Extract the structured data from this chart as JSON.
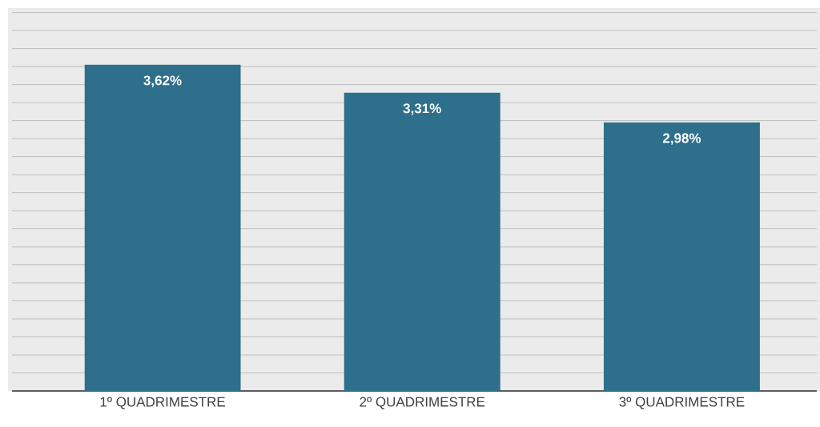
{
  "chart_data": {
    "type": "bar",
    "categories": [
      "1º QUADRIMESTRE",
      "2º QUADRIMESTRE",
      "3º QUADRIMESTRE"
    ],
    "values": [
      3.62,
      3.31,
      2.98
    ],
    "value_labels": [
      "3,62%",
      "3,31%",
      "2,98%"
    ],
    "color": "#2e6f8c",
    "ylim": [
      0,
      4.25
    ],
    "tick_labels": "x",
    "grid": "y"
  }
}
